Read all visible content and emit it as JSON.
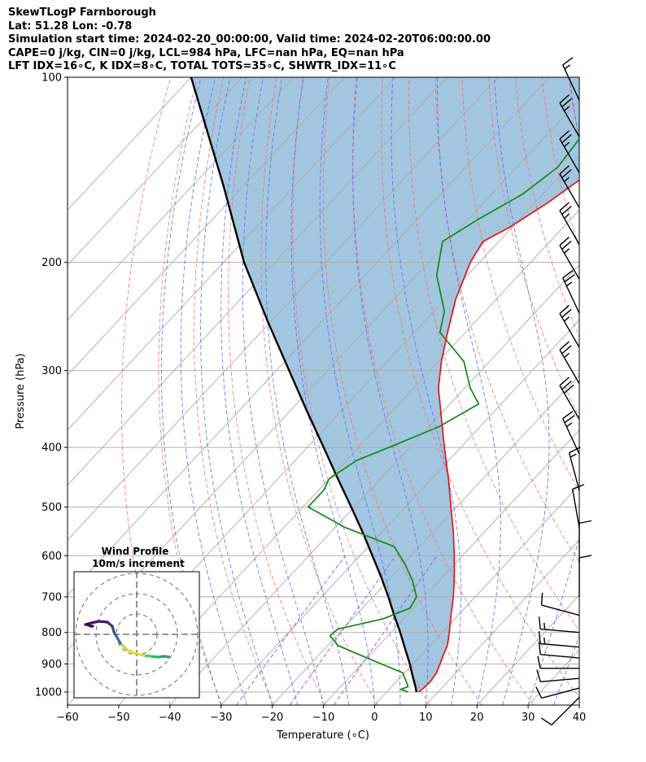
{
  "header": {
    "line1": "SkewTLogP Farnborough",
    "line2": "Lat: 51.28   Lon: -0.78",
    "line3": "Simulation start time: 2024-02-20_00:00:00, Valid time: 2024-02-20T06:00:00.00",
    "line4": "CAPE=0 j/kg, CIN=0 j/kg, LCL=984 hPa, LFC=nan hPa, EQ=nan hPa",
    "line5": "LFT IDX=16∘C, K IDX=8∘C, TOTAL TOTS=35∘C, SHWTR_IDX=11∘C"
  },
  "colors": {
    "temperature": "#ee1111",
    "dewpoint": "#118811",
    "parcel": "#000000",
    "shade": "#a3c6e0",
    "dry_adiabat": "#ff6666",
    "moist_adiabat": "#5566ee",
    "mixing_ratio": "#9955cc",
    "isotherm": "#aaaaaa"
  },
  "chart_data": {
    "type": "line",
    "xlabel": "Temperature (∘C)",
    "ylabel": "Pressure (hPa)",
    "xlim": [
      -60,
      40
    ],
    "ylim": [
      1050,
      100
    ],
    "yscale": "log",
    "skew": true,
    "grid": true,
    "xticks": [
      "−60",
      "−50",
      "−40",
      "−30",
      "−20",
      "−10",
      "0",
      "10",
      "20",
      "30",
      "40"
    ],
    "yticks": [
      "1000",
      "900",
      "800",
      "700",
      "600",
      "500",
      "400",
      "300",
      "200",
      "100"
    ],
    "series": [
      {
        "key": "temperature",
        "pressure": [
          1000,
          985,
          960,
          930,
          900,
          870,
          840,
          800,
          750,
          700,
          650,
          600,
          550,
          500,
          450,
          400,
          350,
          320,
          290,
          260,
          230,
          200,
          185,
          175,
          160,
          140,
          120,
          108,
          100
        ],
        "values": [
          6.2,
          6.5,
          6.6,
          6.2,
          5.3,
          4.3,
          3.4,
          1.4,
          -1.4,
          -4.3,
          -7.7,
          -11.6,
          -16.0,
          -21.1,
          -26.7,
          -33.2,
          -40.4,
          -45.2,
          -49.4,
          -53.5,
          -57.9,
          -61.8,
          -63.1,
          -60.4,
          -57.5,
          -54.3,
          -51.3,
          -50.4,
          -50.6
        ]
      },
      {
        "key": "dewpoint",
        "pressure": [
          1000,
          990,
          980,
          960,
          930,
          900,
          870,
          840,
          810,
          790,
          760,
          730,
          700,
          660,
          620,
          580,
          540,
          500,
          470,
          450,
          420,
          400,
          370,
          340,
          320,
          290,
          260,
          240,
          210,
          185,
          170,
          155,
          140,
          125,
          112,
          100
        ],
        "values": [
          4.2,
          2.3,
          3.2,
          1.8,
          -0.4,
          -6.2,
          -12.0,
          -18.0,
          -21.3,
          -21.0,
          -14.0,
          -10.7,
          -11.5,
          -15.1,
          -19.6,
          -25.0,
          -38.0,
          -49.0,
          -49.0,
          -50.0,
          -48.0,
          -44.0,
          -38.0,
          -34.4,
          -39.0,
          -45.0,
          -55.0,
          -58.0,
          -66.0,
          -71.0,
          -68.0,
          -64.0,
          -62.0,
          -63.0,
          -61.0,
          -57.0
        ]
      },
      {
        "key": "parcel",
        "pressure": [
          1000,
          984,
          950,
          900,
          850,
          800,
          750,
          700,
          650,
          600,
          550,
          500,
          450,
          400,
          350,
          300,
          250,
          200,
          150,
          100
        ],
        "values": [
          5.8,
          4.9,
          2.7,
          -0.6,
          -4.3,
          -8.2,
          -12.5,
          -17.0,
          -22.0,
          -27.6,
          -33.7,
          -40.6,
          -48.3,
          -56.8,
          -66.5,
          -77.5,
          -90.5,
          -106.0,
          -124.0,
          -150.0
        ]
      }
    ],
    "shading": {
      "between": [
        "temperature",
        "parcel"
      ]
    },
    "wind_barbs": {
      "pressure": [
        1020,
        985,
        950,
        915,
        880,
        845,
        800,
        750,
        700,
        615,
        540,
        470,
        410,
        360,
        315,
        275,
        242,
        213,
        187,
        163,
        143,
        125,
        109
      ],
      "speed_kt": [
        10,
        10,
        10,
        10,
        10,
        15,
        15,
        10,
        10,
        10,
        10,
        15,
        25,
        30,
        25,
        25,
        25,
        25,
        25,
        25,
        25,
        25,
        15
      ],
      "direction_deg": [
        225,
        255,
        265,
        270,
        275,
        275,
        275,
        285,
        0,
        0,
        350,
        345,
        335,
        330,
        330,
        330,
        335,
        330,
        330,
        330,
        330,
        330,
        335
      ]
    },
    "hodograph": {
      "title": "Wind Profile",
      "subtitle": "10m/s increment",
      "ring_count": 3,
      "u": [
        4,
        3.4,
        2.6,
        1.7,
        0.9,
        -0.3,
        -1.2,
        -2.0,
        -2.4,
        -2.8,
        -3.0,
        -3.6,
        -4.6,
        -5.6,
        -6.3,
        -6.1,
        -5.6,
        -5.4
      ],
      "v": [
        -2.8,
        -2.7,
        -2.8,
        -2.7,
        -2.6,
        -2.3,
        -1.9,
        -1.1,
        -0.4,
        0.3,
        1.0,
        1.5,
        1.6,
        1.4,
        1.2,
        1.2,
        1.0,
        1.0
      ],
      "colors": [
        "#24a582",
        "#24a582",
        "#2fb57a",
        "#54c568",
        "#e0d83a",
        "#f0e02a",
        "#c8d83a",
        "#3a6f92",
        "#3a5f91",
        "#3d4d8a",
        "#40377f",
        "#45146f",
        "#45146f",
        "#440e63",
        "#440e63",
        "#440154",
        "#440154",
        "#440154"
      ]
    }
  }
}
